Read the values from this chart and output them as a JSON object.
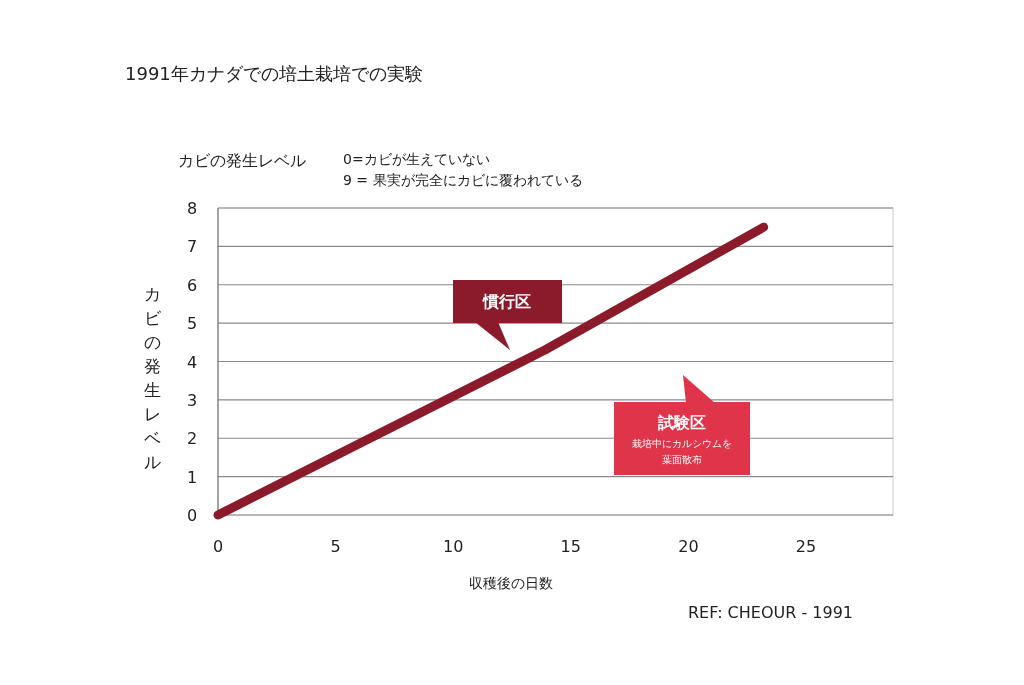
{
  "chart_data": {
    "type": "line",
    "title": "1991年カナダでの培土栽培での実験",
    "xlabel": "収穫後の日数",
    "ylabel": "カビの発生レベル",
    "x": [
      0,
      13.9,
      23.2
    ],
    "series": [
      {
        "color": "#8b1a2b",
        "values": [
          0,
          4.3,
          7.5
        ]
      }
    ],
    "xlim": [
      0,
      28.7
    ],
    "xticks": [
      0,
      5,
      10,
      15,
      20,
      25
    ],
    "ylim": [
      0,
      8
    ],
    "yticks": [
      0,
      1,
      2,
      3,
      4,
      5,
      6,
      7,
      8
    ],
    "grid": "y",
    "marker": "none",
    "line_style": "solid",
    "annotations": [
      "カビの発生レベル",
      "0=カビが生えていない",
      "9 = 果実が完全にカビに覆われている",
      "慣行区",
      "試験区",
      "栽培中にカルシウムを",
      "葉面散布",
      "REF: CHEOUR - 1991"
    ]
  }
}
